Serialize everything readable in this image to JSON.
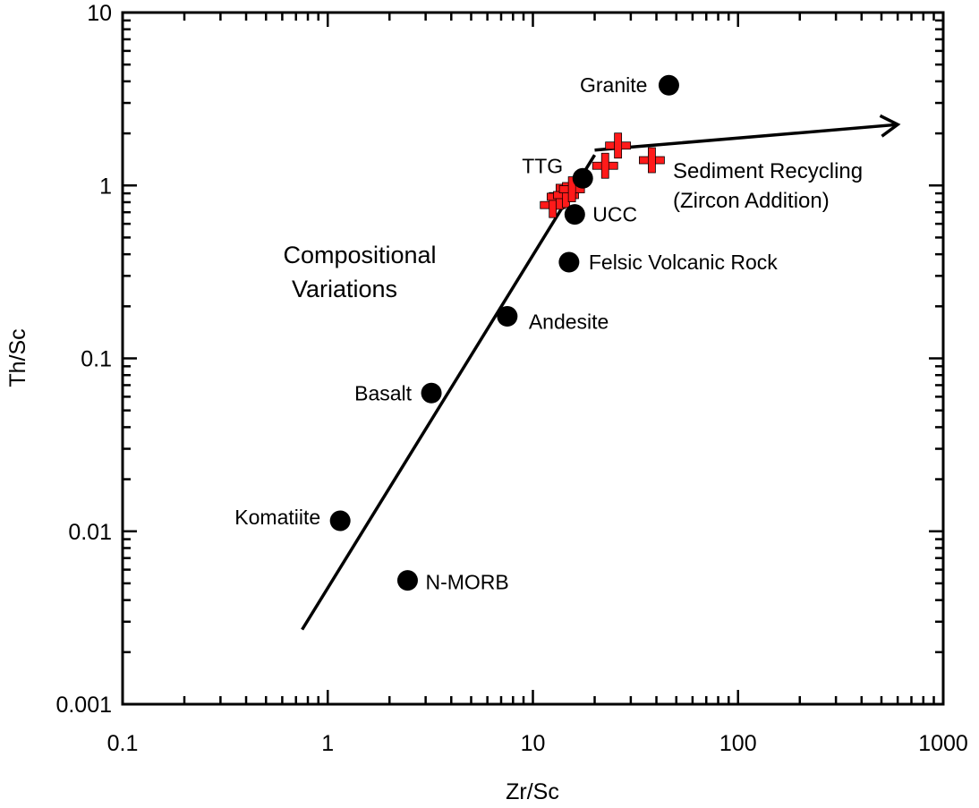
{
  "chart_data": {
    "type": "scatter",
    "xlabel": "Zr/Sc",
    "ylabel": "Th/Sc",
    "xscale": "log",
    "yscale": "log",
    "xlim": [
      0.1,
      1000
    ],
    "ylim": [
      0.001,
      10
    ],
    "x_ticks": [
      "0.1",
      "1",
      "10",
      "100",
      "1000"
    ],
    "y_ticks": [
      "0.001",
      "0.01",
      "0.1",
      "1",
      "10"
    ],
    "grid": false,
    "series": [
      {
        "marker": "filled-circle",
        "color": "#000000",
        "points": [
          {
            "label": "Granite",
            "x": 46,
            "y": 3.8
          },
          {
            "label": "TTG",
            "x": 17.5,
            "y": 1.1
          },
          {
            "label": "UCC",
            "x": 16,
            "y": 0.68
          },
          {
            "label": "Felsic Volcanic Rock",
            "x": 15,
            "y": 0.36
          },
          {
            "label": "Andesite",
            "x": 7.5,
            "y": 0.175
          },
          {
            "label": "Basalt",
            "x": 3.2,
            "y": 0.063
          },
          {
            "label": "Komatiite",
            "x": 1.15,
            "y": 0.0115
          },
          {
            "label": "N-MORB",
            "x": 2.45,
            "y": 0.0052
          }
        ]
      },
      {
        "marker": "plus",
        "color": "#ff1a1a",
        "points": [
          {
            "x": 12.5,
            "y": 0.77
          },
          {
            "x": 13.5,
            "y": 0.86
          },
          {
            "x": 14.5,
            "y": 0.88
          },
          {
            "x": 15.5,
            "y": 0.95
          },
          {
            "x": 22.5,
            "y": 1.3
          },
          {
            "x": 26,
            "y": 1.7
          },
          {
            "x": 38,
            "y": 1.4
          }
        ]
      }
    ],
    "trend_lines": [
      {
        "x": [
          0.75,
          20
        ],
        "y": [
          0.0027,
          1.5
        ],
        "arrow": false
      },
      {
        "x": [
          20,
          600
        ],
        "y": [
          1.6,
          2.25
        ],
        "arrow": true
      }
    ],
    "annotations": {
      "composition": [
        "Compositional",
        "Variations"
      ],
      "recycling": [
        "Sediment Recycling",
        "(Zircon Addition)"
      ]
    }
  }
}
